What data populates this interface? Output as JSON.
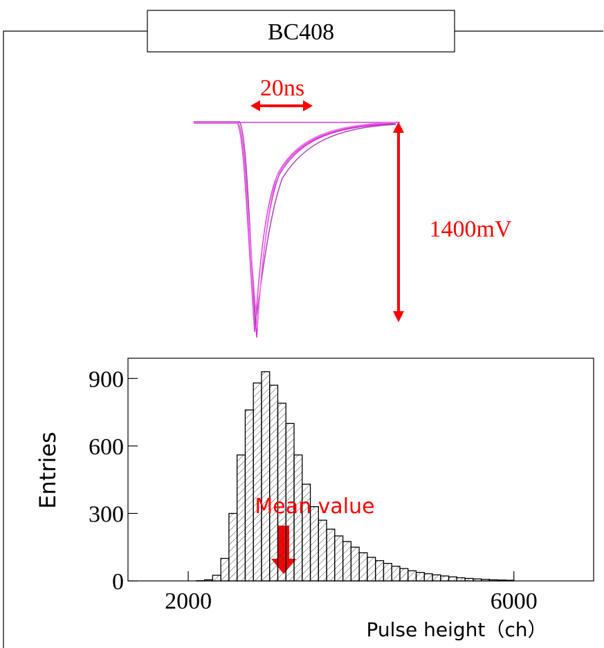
{
  "chart_data": {
    "type": "histogram",
    "title": "BC408",
    "bins": [
      2000,
      2100,
      2200,
      2300,
      2400,
      2500,
      2600,
      2700,
      2800,
      2900,
      3000,
      3100,
      3200,
      3300,
      3400,
      3500,
      3600,
      3700,
      3800,
      3900,
      4000,
      4100,
      4200,
      4300,
      4400,
      4500,
      4600,
      4700,
      4800,
      4900,
      5000,
      5100,
      5200,
      5300,
      5400,
      5500,
      5600,
      5700,
      5800,
      5900,
      6000
    ],
    "values": [
      0,
      1,
      5,
      25,
      100,
      300,
      560,
      760,
      880,
      930,
      870,
      790,
      700,
      560,
      430,
      330,
      270,
      230,
      200,
      175,
      150,
      125,
      105,
      90,
      78,
      65,
      55,
      45,
      38,
      32,
      27,
      22,
      18,
      14,
      11,
      9,
      7,
      5,
      4,
      3
    ],
    "color": "#000000",
    "xlim": [
      1260,
      6980
    ],
    "ylim": [
      0,
      990
    ],
    "xticks": [
      2000,
      6000
    ],
    "yticks": [
      0,
      300,
      600,
      900
    ],
    "xlabel": "Pulse height（ch）",
    "ylabel": "Entries",
    "annotation": "Mean value"
  },
  "waveform": {
    "width_label": "20ns",
    "height_label": "1400mV"
  }
}
